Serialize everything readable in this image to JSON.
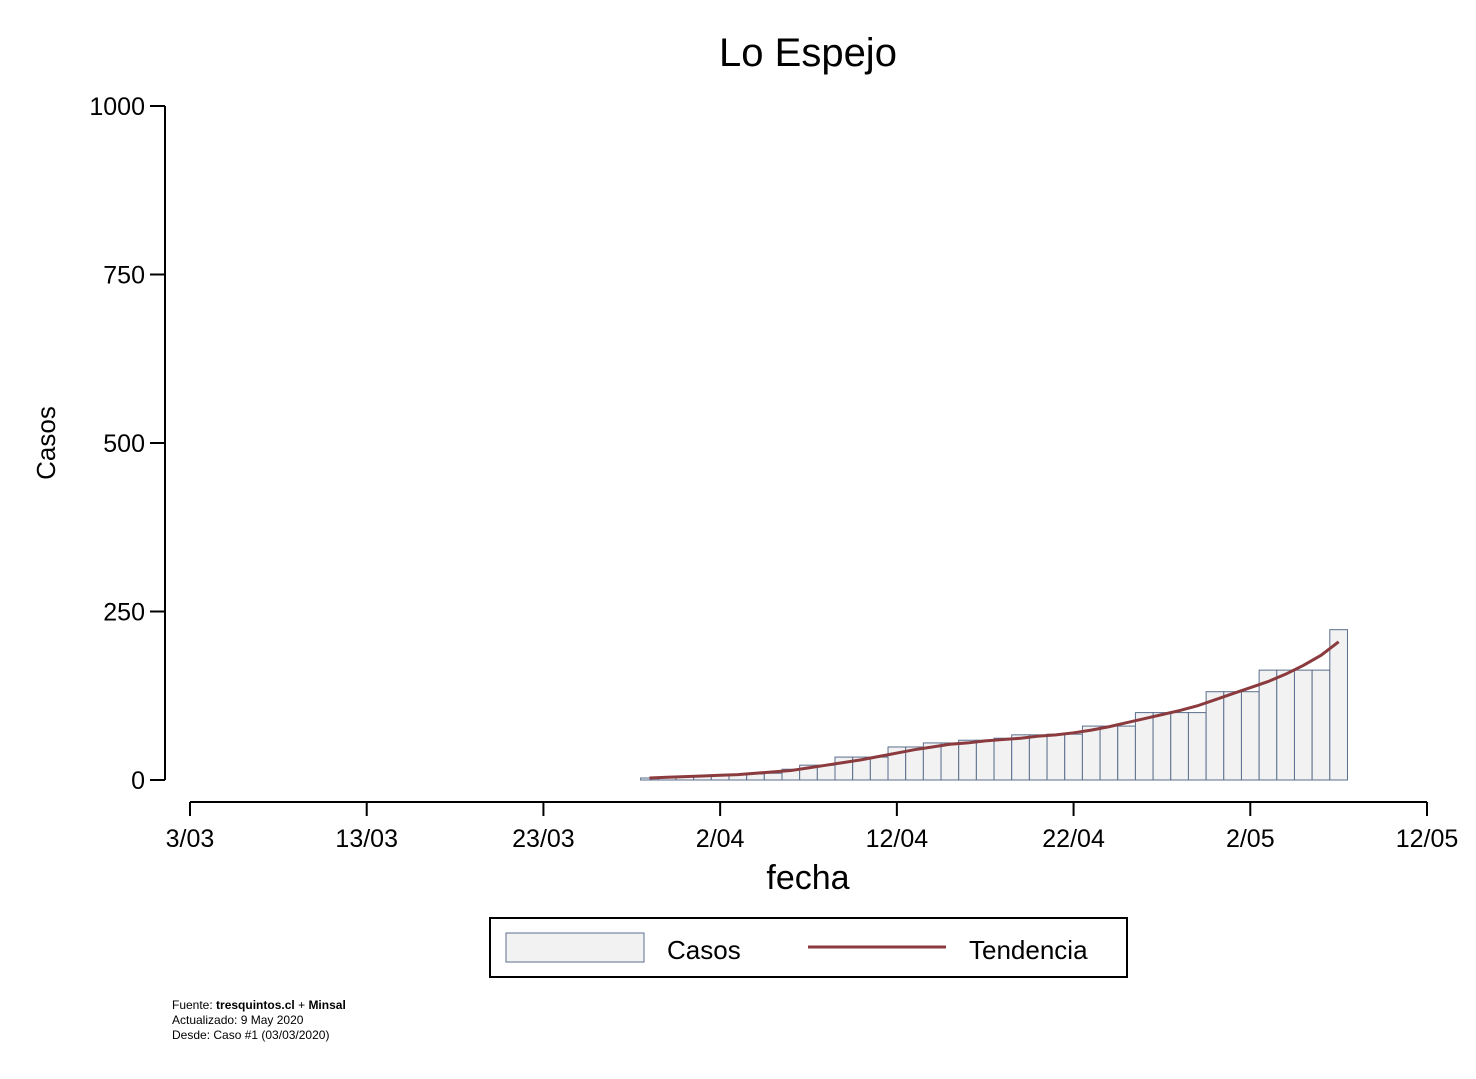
{
  "chart_data": {
    "type": "bar-line",
    "title": "Lo Espejo",
    "x_label": "fecha",
    "y_label": "Casos",
    "x": [
      "29/03",
      "30/03",
      "31/03",
      "1/04",
      "2/04",
      "3/04",
      "4/04",
      "5/04",
      "6/04",
      "7/04",
      "8/04",
      "9/04",
      "10/04",
      "11/04",
      "12/04",
      "13/04",
      "14/04",
      "15/04",
      "16/04",
      "17/04",
      "18/04",
      "19/04",
      "20/04",
      "21/04",
      "22/04",
      "23/04",
      "24/04",
      "25/04",
      "26/04",
      "27/04",
      "28/04",
      "29/04",
      "30/04",
      "1/05",
      "2/05",
      "3/05",
      "4/05",
      "5/05",
      "6/05",
      "7/05"
    ],
    "series": [
      {
        "name": "Casos",
        "kind": "bar",
        "color": "#f2f2f2",
        "edge_color": "#5a6e8c",
        "values": [
          3,
          4,
          5,
          6,
          7,
          8,
          9,
          10,
          16,
          22,
          22,
          34,
          34,
          34,
          49,
          49,
          55,
          55,
          59,
          59,
          62,
          67,
          67,
          68,
          68,
          80,
          80,
          80,
          100,
          100,
          100,
          100,
          131,
          131,
          131,
          163,
          163,
          163,
          163,
          223
        ]
      },
      {
        "name": "Tendencia",
        "kind": "line",
        "color": "#8b3a3e",
        "values": [
          3,
          4,
          5,
          6,
          7,
          8,
          10,
          12,
          14,
          18,
          22,
          26,
          30,
          35,
          40,
          45,
          49,
          53,
          55,
          58,
          60,
          62,
          65,
          67,
          70,
          74,
          79,
          85,
          91,
          97,
          103,
          110,
          119,
          128,
          137,
          146,
          157,
          170,
          185,
          205
        ]
      }
    ],
    "xlim": [
      "3/03",
      "12/05"
    ],
    "xticks": [
      "3/03",
      "13/03",
      "23/03",
      "2/04",
      "12/04",
      "22/04",
      "2/05",
      "12/05"
    ],
    "ylim": [
      0,
      1000
    ],
    "yticks": [
      0,
      250,
      500,
      750,
      1000
    ],
    "footer": {
      "source_prefix": "Fuente:",
      "source_site": "tresquintos.cl",
      "source_plus": "+",
      "source_org": "Minsal",
      "updated": "Actualizado: 9 May 2020",
      "since": "Desde: Caso #1  (03/03/2020)"
    }
  }
}
